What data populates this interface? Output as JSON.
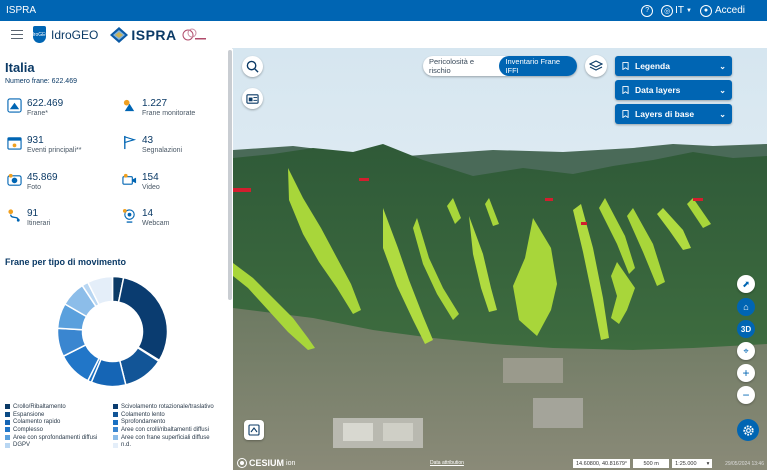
{
  "topbar": {
    "brand": "ISPRA",
    "lang": "IT",
    "login": "Accedi"
  },
  "header": {
    "app_name": "IdroGEO",
    "org_name": "ISPRA",
    "shield_text": "IdroGEO"
  },
  "sidebar": {
    "title": "Italia",
    "num_frane_label": "Numero frane: 622.469",
    "stats": [
      {
        "value": "622.469",
        "label": "Frane*"
      },
      {
        "value": "1.227",
        "label": "Frane monitorate"
      },
      {
        "value": "931",
        "label": "Eventi principali**"
      },
      {
        "value": "43",
        "label": "Segnalazioni"
      },
      {
        "value": "45.869",
        "label": "Foto"
      },
      {
        "value": "154",
        "label": "Video"
      },
      {
        "value": "91",
        "label": "Itinerari"
      },
      {
        "value": "14",
        "label": "Webcam"
      }
    ],
    "chart_title": "Frane per tipo di movimento"
  },
  "chart_data": {
    "type": "pie",
    "title": "Frane per tipo di movimento",
    "categories": [
      "Crollo/Ribaltamento",
      "Scivolamento rotazionale/traslativo",
      "Espansione",
      "Colamento lento",
      "Colamento rapido",
      "Sprofondamento",
      "Complesso",
      "Aree con crolli/ribaltamenti diffusi",
      "Aree con sprofondamenti diffusi",
      "Aree con frane superficiali diffuse",
      "DGPV",
      "n.d."
    ],
    "values": [
      0.035,
      0.33,
      0.003,
      0.13,
      0.11,
      0.012,
      0.11,
      0.09,
      0.08,
      0.08,
      0.02,
      0.08
    ],
    "colors": [
      "#0b3a66",
      "#0a3c70",
      "#0b4a85",
      "#125597",
      "#1565b5",
      "#1a70c2",
      "#2176c8",
      "#3a86d0",
      "#5aa0dd",
      "#8cbde9",
      "#b8d6f2",
      "#e4eef9"
    ]
  },
  "legend_items": [
    {
      "label": "Crollo/Ribaltamento",
      "color": "#0b3a66"
    },
    {
      "label": "Scivolamento rotazionale/traslativo",
      "color": "#0a3c70"
    },
    {
      "label": "Espansione",
      "color": "#0b4a85"
    },
    {
      "label": "Colamento lento",
      "color": "#125597"
    },
    {
      "label": "Colamento rapido",
      "color": "#1565b5"
    },
    {
      "label": "Sprofondamento",
      "color": "#1a70c2"
    },
    {
      "label": "Complesso",
      "color": "#2176c8"
    },
    {
      "label": "Aree con crolli/ribaltamenti diffusi",
      "color": "#3a86d0"
    },
    {
      "label": "Aree con sprofondamenti diffusi",
      "color": "#5aa0dd"
    },
    {
      "label": "Aree con frane superficiali diffuse",
      "color": "#8cbde9"
    },
    {
      "label": "DGPV",
      "color": "#b8d6f2"
    },
    {
      "label": "n.d.",
      "color": "#e4eef9"
    }
  ],
  "map": {
    "toggle_options": [
      "Pericolosità e rischio",
      "Inventario Frane IFFI"
    ],
    "panels": [
      "Legenda",
      "Data layers",
      "Layers di base"
    ],
    "btn_3d": "3D",
    "cesium_label": "CESIUM",
    "cesium_sub": "ion",
    "data_attr": "Data attribution",
    "coords": "14.60800, 40.81679°",
    "scale_m": "500 m",
    "scale_ratio": "1:25.000",
    "timestamp": "29/05/2024 13:46"
  }
}
